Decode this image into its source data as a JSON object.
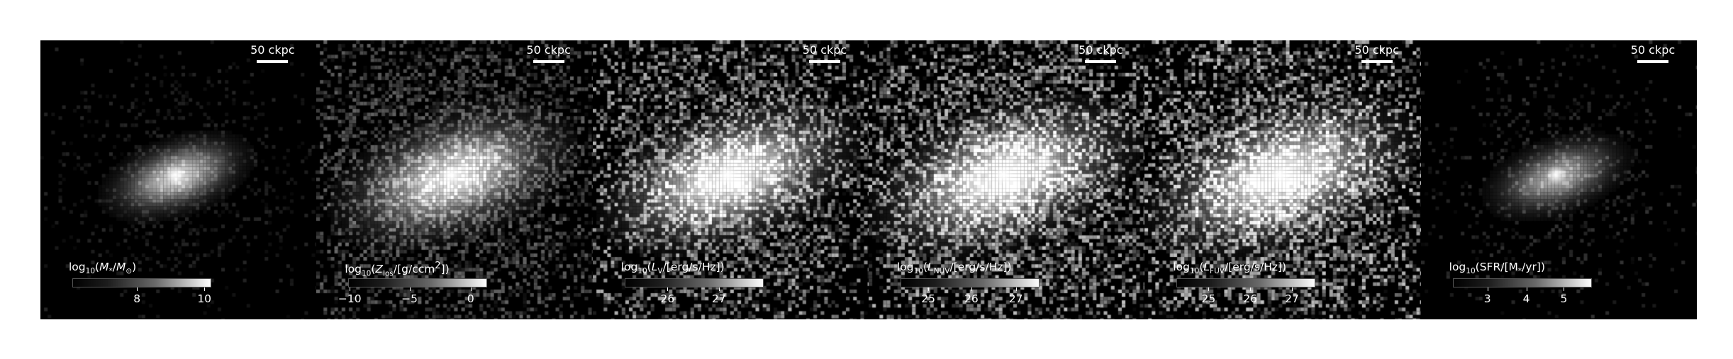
{
  "panels": [
    {
      "scale_label": "50 ckpc",
      "cb_title_html": "log<sub>10</sub>(<i>M</i><sub>*</sub>/<i>M</i><sub>⊙</sub>)",
      "ticks": [
        "8",
        "10"
      ],
      "tick_positions": [
        0.465,
        0.95
      ],
      "brightness": 0.85,
      "spread": 0.7,
      "density": 0.35,
      "noise": 0.15
    },
    {
      "scale_label": "50 ckpc",
      "cb_title_html": "log<sub>10</sub>(<i>Z</i><sub>los</sub>/[g/ccm<sup>2</sup>])",
      "ticks": [
        "−10",
        "−5",
        "0"
      ],
      "tick_positions": [
        0.01,
        0.44,
        0.88
      ],
      "brightness": 0.9,
      "spread": 1.1,
      "density": 0.75,
      "noise": 0.4
    },
    {
      "scale_label": "50 ckpc",
      "cb_title_html": "log<sub>10</sub>(<i>L</i><sub>V</sub>/[erg/s/Hz])",
      "ticks": [
        "26",
        "27"
      ],
      "tick_positions": [
        0.31,
        0.68
      ],
      "brightness": 1.0,
      "spread": 1.15,
      "density": 0.75,
      "noise": 0.7
    },
    {
      "scale_label": "50 ckpc",
      "cb_title_html": "log<sub>10</sub>(<i>L</i><sub>NUV</sub>/[erg/s/Hz])",
      "ticks": [
        "25",
        "26",
        "27"
      ],
      "tick_positions": [
        0.2,
        0.51,
        0.83
      ],
      "brightness": 1.0,
      "spread": 1.2,
      "density": 0.8,
      "noise": 0.75
    },
    {
      "scale_label": "50 ckpc",
      "cb_title_html": "log<sub>10</sub>(<i>L</i><sub>FUV</sub>/[erg/s/Hz])",
      "ticks": [
        "25",
        "26",
        "27"
      ],
      "tick_positions": [
        0.23,
        0.53,
        0.83
      ],
      "brightness": 1.0,
      "spread": 1.2,
      "density": 0.8,
      "noise": 0.78
    },
    {
      "scale_label": "50 ckpc",
      "cb_title_html": "log<sub>10</sub>(SFR/[M<sub>*</sub>/yr])",
      "ticks": [
        "3",
        "4",
        "5"
      ],
      "tick_positions": [
        0.25,
        0.53,
        0.8
      ],
      "brightness": 0.7,
      "spread": 0.7,
      "density": 0.3,
      "noise": 0.2
    }
  ]
}
